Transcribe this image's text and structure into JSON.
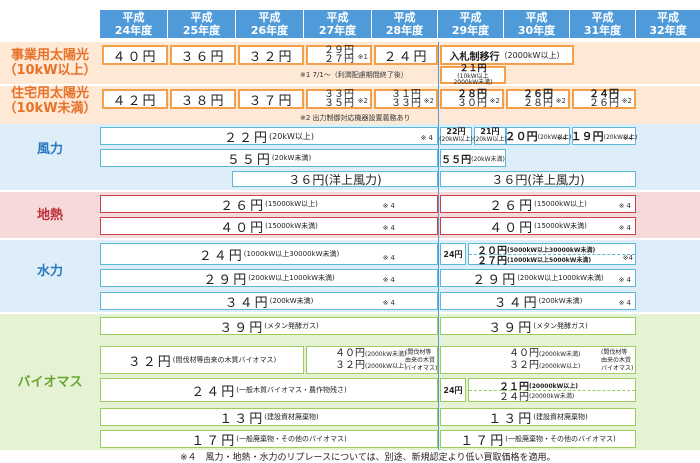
{
  "header": {
    "years": [
      {
        "era": "平成",
        "year": "24年度"
      },
      {
        "era": "平成",
        "year": "25年度"
      },
      {
        "era": "平成",
        "year": "26年度"
      },
      {
        "era": "平成",
        "year": "27年度"
      },
      {
        "era": "平成",
        "year": "28年度"
      },
      {
        "era": "平成",
        "year": "29年度"
      },
      {
        "era": "平成",
        "year": "30年度"
      },
      {
        "era": "平成",
        "year": "31年度"
      },
      {
        "era": "平成",
        "year": "32年度"
      }
    ]
  },
  "solar_biz": {
    "label1": "事業用太陽光",
    "label2": "（10kW以上）",
    "y24": "４０円",
    "y25": "３６円",
    "y26": "３２円",
    "y27a": "２９円",
    "y27b": "２７円",
    "y27note": "※1",
    "y28": "２４円",
    "auction": "入札制移行",
    "auction_note": "（2000kW以上）",
    "y29": "２１円",
    "y29sub": "(10kW以上",
    "y29sub2": "2000kW未満)",
    "footnote": "※1 7/1～（利潤配慮期間終了後）"
  },
  "solar_home": {
    "label1": "住宅用太陽光",
    "label2": "（10kW未満）",
    "y24": "４２円",
    "y25": "３８円",
    "y26": "３７円",
    "y27a": "３３円",
    "y27b": "３５円",
    "y27note": "※2",
    "y28a": "３１円",
    "y28b": "３３円",
    "y28note": "※2",
    "y29a": "２８円",
    "y29b": "３０円",
    "y29note": "※2",
    "y30a": "２６円",
    "y30b": "２８円",
    "y30note": "※2",
    "y31a": "２４円",
    "y31b": "２６円",
    "y31note": "※2",
    "footnote": "※2 出力制御対応機器設置義務あり"
  },
  "wind": {
    "label": "風力",
    "r1_main": "２２円",
    "r1_main_cond": "(20kW以上)",
    "r1_note": "※4",
    "r1_y29": "22円",
    "r1_y29_sub": "(20kW以上)",
    "r1_y29b": "21円",
    "r1_y29b_sub": "(20kW以上)",
    "r1_y30": "２０円",
    "r1_y30_sub": "(20kW以上)",
    "r1_y30_note": "※4",
    "r1_y31": "１９円",
    "r1_y31_sub": "(20kW以上)",
    "r1_y31_note": "※4",
    "r2_main": "５５円",
    "r2_cond": "(20kW未満)",
    "r2_y29": "５５円",
    "r2_y29_cond": "(20kW未満)",
    "r3_main": "３６円(洋上風力)",
    "r3_y29": "３６円(洋上風力)"
  },
  "geo": {
    "label": "地熱",
    "r1_main": "２６円",
    "r1_cond": "(15000kW以上)",
    "r1_note": "※4",
    "r1_y29": "２６円",
    "r1_y29_cond": "(15000kW以上)",
    "r1_y29_note": "※4",
    "r2_main": "４０円",
    "r2_cond": "(15000kW未満)",
    "r2_note": "※4",
    "r2_y29": "４０円",
    "r2_y29_cond": "(15000kW未満)",
    "r2_y29_note": "※4"
  },
  "hydro": {
    "label": "水力",
    "r1_main": "２４円",
    "r1_cond": "(1000kW以上30000kW未満)",
    "r1_note": "※4",
    "r1_y29a": "24円",
    "r1_y29b": "２０円",
    "r1_y29b_cond": "(5000kW以上30000kW未満)",
    "r1_y29c": "２７円",
    "r1_y29c_cond": "(1000kW以上5000kW未満)",
    "r1_y29_note": "※4",
    "r2_main": "２９円",
    "r2_cond": "(200kW以上1000kW未満)",
    "r2_note": "※4",
    "r2_y29": "２９円",
    "r2_y29_cond": "(200kW以上1000kW未満)",
    "r2_y29_note": "※4",
    "r3_main": "３４円",
    "r3_cond": "(200kW未満)",
    "r3_note": "※4",
    "r3_y29": "３４円",
    "r3_y29_cond": "(200kW未満)",
    "r3_y29_note": "※4"
  },
  "bio": {
    "label": "バイオマス",
    "r1_main": "３９円",
    "r1_cond": "(メタン発酵ガス)",
    "r1_y29": "３９円",
    "r1_y29_cond": "(メタン発酵ガス)",
    "r2_main": "３２円",
    "r2_cond": "(間伐材等由来の木質バイオマス)",
    "r2_b1": "４０円",
    "r2_b1_cond": "(2000kW未満)",
    "r2_b2": "３２円",
    "r2_b2_cond": "(2000kW以上)",
    "r2_b_side1": "(間伐材等",
    "r2_b_side2": "由来の木質",
    "r2_b_side3": "バイオマス)",
    "r2_y29a": "４０円",
    "r2_y29a_cond": "(2000kW未満)",
    "r2_y29b": "３２円",
    "r2_y29b_cond": "(2000kW以上)",
    "r2_y29_side1": "(間伐材等",
    "r2_y29_side2": "由来の木質",
    "r2_y29_side3": "バイオマス)",
    "r3_main": "２４円",
    "r3_cond": "(一般木質バイオマス・農作物残さ)",
    "r3_y29a": "24円",
    "r3_y29b": "２１円",
    "r3_y29b_cond": "(20000kW以上)",
    "r3_y29c": "２４円",
    "r3_y29c_cond": "(20000kW未満)",
    "r4_main": "１３円",
    "r4_cond": "(建設資材廃棄物)",
    "r4_y29": "１３円",
    "r4_y29_cond": "(建設資材廃棄物)",
    "r5_main": "１７円",
    "r5_cond": "(一般廃棄物・その他のバイオマス)",
    "r5_y29": "１７円",
    "r5_y29_cond": "(一般廃棄物・その他のバイオマス)"
  },
  "footer_note": "※４　風力・地熱・水力のリプレースについては、別途、新規認定より低い買取価格を適用。",
  "colors": {
    "header": "#4f9ad8",
    "orange": "#f2a04a",
    "blue": "#5bb8d6",
    "red": "#c8404a",
    "green": "#9ccc5c"
  }
}
